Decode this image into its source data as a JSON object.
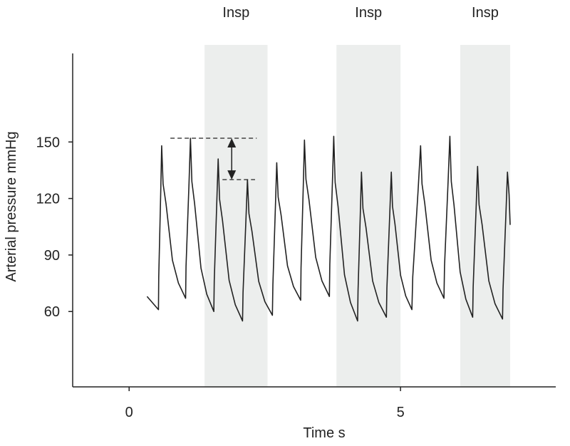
{
  "chart_data": {
    "type": "line",
    "title": "",
    "xlabel": "Time s",
    "ylabel": "Arterial pressure mmHg",
    "xlim": [
      -1.04,
      7.86
    ],
    "ylim": [
      20,
      197
    ],
    "xticks": [
      0,
      5
    ],
    "yticks": [
      60,
      90,
      120,
      150
    ],
    "grid": false,
    "shaded_regions": [
      {
        "label": "Insp",
        "start": 1.39,
        "end": 2.55
      },
      {
        "label": "Insp",
        "start": 3.82,
        "end": 5.0
      },
      {
        "label": "Insp",
        "start": 6.1,
        "end": 7.02
      }
    ],
    "shade_color": "#eceeed",
    "line_color": "#222222",
    "series": [
      {
        "start": {
          "x": 0.33,
          "y": 68
        },
        "beats": [
          {
            "trough_t": 0.54,
            "trough": 61,
            "peak_t": 0.6,
            "peak": 148
          },
          {
            "trough_t": 1.04,
            "trough": 67,
            "peak_t": 1.13,
            "peak": 152
          },
          {
            "trough_t": 1.56,
            "trough": 60,
            "peak_t": 1.64,
            "peak": 141
          },
          {
            "trough_t": 2.09,
            "trough": 55,
            "peak_t": 2.18,
            "peak": 130
          },
          {
            "trough_t": 2.64,
            "trough": 58,
            "peak_t": 2.72,
            "peak": 139
          },
          {
            "trough_t": 3.16,
            "trough": 66,
            "peak_t": 3.23,
            "peak": 151
          },
          {
            "trough_t": 3.69,
            "trough": 68,
            "peak_t": 3.77,
            "peak": 153
          },
          {
            "trough_t": 4.21,
            "trough": 55,
            "peak_t": 4.28,
            "peak": 134
          },
          {
            "trough_t": 4.74,
            "trough": 57,
            "peak_t": 4.83,
            "peak": 134
          },
          {
            "trough_t": 5.21,
            "trough": 61,
            "peak_t": 5.37,
            "peak": 148
          },
          {
            "trough_t": 5.8,
            "trough": 67,
            "peak_t": 5.91,
            "peak": 153
          },
          {
            "trough_t": 6.33,
            "trough": 57,
            "peak_t": 6.42,
            "peak": 137
          },
          {
            "trough_t": 6.88,
            "trough": 56,
            "peak_t": 6.97,
            "peak": 134
          }
        ],
        "end": {
          "x": 7.02,
          "y": 106
        }
      }
    ],
    "annotations": {
      "upper_dashed": {
        "y": 152,
        "x_from": 0.76,
        "x_to": 2.35
      },
      "lower_dashed": {
        "y": 130,
        "x_from": 1.72,
        "x_to": 2.32
      },
      "double_arrow": {
        "x": 1.89,
        "y_from": 152,
        "y_to": 130
      }
    }
  }
}
